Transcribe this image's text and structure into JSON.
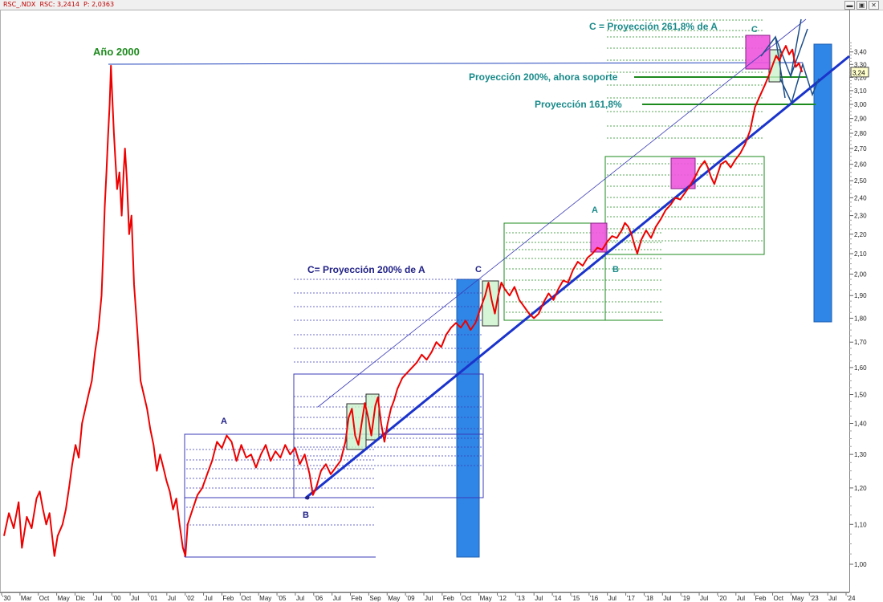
{
  "window": {
    "title": "RSC_.NDX  RSC: 3,2414  P: 2,0363",
    "buttons": [
      "▬",
      "▣",
      "✕"
    ]
  },
  "chart_data": {
    "type": "line",
    "title": "",
    "xlabel": "",
    "ylabel": "",
    "ylim": [
      0.98,
      3.52
    ],
    "y_scale": "log",
    "grid": false,
    "legend": "none",
    "last_value_label": "3,24",
    "colors": {
      "price": "#ee0000",
      "trend": "#1a33cc",
      "band": "#2f86e6",
      "fib_green": "#1d8a1d",
      "fib_blue": "#3b3bb8",
      "magenta": "#ee55dd",
      "teal": "#1a8a8a"
    },
    "y_ticks": [
      "1,00",
      "1,10",
      "1,20",
      "1,30",
      "1,40",
      "1,50",
      "1,60",
      "1,70",
      "1,80",
      "1,90",
      "2,00",
      "2,10",
      "2,20",
      "2,30",
      "2,40",
      "2,50",
      "2,60",
      "2,70",
      "2,80",
      "2,90",
      "3,00",
      "3,10",
      "3,20",
      "3,30",
      "3,40"
    ],
    "x_tick_labels": [
      "'30",
      "Mar",
      "Oct",
      "May",
      "Dic",
      "Jul",
      "'00",
      "Jul",
      "'01",
      "Jul",
      "'02",
      "Jul",
      "Feb",
      "Oct",
      "May",
      "'05",
      "Jul",
      "'06",
      "Jul",
      "Feb",
      "Sep",
      "May",
      "'09",
      "Jul",
      "Feb",
      "Oct",
      "May",
      "'12",
      "'13",
      "Jul",
      "'14",
      "'15",
      "'16",
      "Jul",
      "'17",
      "'18",
      "Jul",
      "'19",
      "Jul",
      "'20",
      "Jul",
      "Feb",
      "Oct",
      "May",
      "'23",
      "Jul",
      "'24"
    ],
    "series": [
      {
        "values": [
          [
            1997.0,
            1.07
          ],
          [
            1997.15,
            1.13
          ],
          [
            1997.3,
            1.09
          ],
          [
            1997.45,
            1.16
          ],
          [
            1997.55,
            1.04
          ],
          [
            1997.7,
            1.12
          ],
          [
            1997.85,
            1.09
          ],
          [
            1998.0,
            1.17
          ],
          [
            1998.1,
            1.19
          ],
          [
            1998.2,
            1.14
          ],
          [
            1998.3,
            1.1
          ],
          [
            1998.4,
            1.13
          ],
          [
            1998.55,
            1.02
          ],
          [
            1998.65,
            1.07
          ],
          [
            1998.8,
            1.1
          ],
          [
            1998.9,
            1.14
          ],
          [
            1999.0,
            1.2
          ],
          [
            1999.1,
            1.27
          ],
          [
            1999.2,
            1.33
          ],
          [
            1999.3,
            1.29
          ],
          [
            1999.4,
            1.4
          ],
          [
            1999.5,
            1.45
          ],
          [
            1999.6,
            1.5
          ],
          [
            1999.7,
            1.55
          ],
          [
            1999.8,
            1.66
          ],
          [
            1999.9,
            1.75
          ],
          [
            2000.0,
            1.9
          ],
          [
            2000.05,
            2.1
          ],
          [
            2000.1,
            2.35
          ],
          [
            2000.15,
            2.55
          ],
          [
            2000.2,
            2.78
          ],
          [
            2000.25,
            3.0
          ],
          [
            2000.29,
            3.29
          ],
          [
            2000.33,
            3.05
          ],
          [
            2000.38,
            2.8
          ],
          [
            2000.42,
            2.65
          ],
          [
            2000.48,
            2.45
          ],
          [
            2000.55,
            2.55
          ],
          [
            2000.62,
            2.3
          ],
          [
            2000.68,
            2.55
          ],
          [
            2000.72,
            2.7
          ],
          [
            2000.78,
            2.5
          ],
          [
            2000.85,
            2.2
          ],
          [
            2000.92,
            2.3
          ],
          [
            2001.0,
            1.95
          ],
          [
            2001.1,
            1.75
          ],
          [
            2001.2,
            1.55
          ],
          [
            2001.3,
            1.5
          ],
          [
            2001.4,
            1.45
          ],
          [
            2001.5,
            1.38
          ],
          [
            2001.6,
            1.33
          ],
          [
            2001.7,
            1.25
          ],
          [
            2001.8,
            1.3
          ],
          [
            2001.9,
            1.26
          ],
          [
            2002.0,
            1.22
          ],
          [
            2002.1,
            1.19
          ],
          [
            2002.2,
            1.14
          ],
          [
            2002.3,
            1.17
          ],
          [
            2002.4,
            1.1
          ],
          [
            2002.5,
            1.04
          ],
          [
            2002.58,
            1.02
          ],
          [
            2002.65,
            1.1
          ],
          [
            2002.8,
            1.14
          ],
          [
            2002.95,
            1.18
          ],
          [
            2003.1,
            1.2
          ],
          [
            2003.25,
            1.24
          ],
          [
            2003.4,
            1.28
          ],
          [
            2003.55,
            1.34
          ],
          [
            2003.7,
            1.32
          ],
          [
            2003.85,
            1.36
          ],
          [
            2004.0,
            1.34
          ],
          [
            2004.15,
            1.28
          ],
          [
            2004.3,
            1.33
          ],
          [
            2004.45,
            1.29
          ],
          [
            2004.6,
            1.3
          ],
          [
            2004.75,
            1.26
          ],
          [
            2004.9,
            1.3
          ],
          [
            2005.05,
            1.33
          ],
          [
            2005.2,
            1.28
          ],
          [
            2005.35,
            1.31
          ],
          [
            2005.5,
            1.29
          ],
          [
            2005.65,
            1.33
          ],
          [
            2005.8,
            1.3
          ],
          [
            2005.95,
            1.32
          ],
          [
            2006.1,
            1.27
          ],
          [
            2006.25,
            1.3
          ],
          [
            2006.4,
            1.24
          ],
          [
            2006.5,
            1.18
          ],
          [
            2006.6,
            1.2
          ],
          [
            2006.75,
            1.25
          ],
          [
            2006.9,
            1.27
          ],
          [
            2007.05,
            1.24
          ],
          [
            2007.2,
            1.26
          ],
          [
            2007.35,
            1.28
          ],
          [
            2007.5,
            1.34
          ],
          [
            2007.6,
            1.42
          ],
          [
            2007.7,
            1.45
          ],
          [
            2007.8,
            1.36
          ],
          [
            2007.9,
            1.33
          ],
          [
            2008.0,
            1.4
          ],
          [
            2008.1,
            1.47
          ],
          [
            2008.2,
            1.42
          ],
          [
            2008.3,
            1.36
          ],
          [
            2008.42,
            1.46
          ],
          [
            2008.5,
            1.49
          ],
          [
            2008.6,
            1.4
          ],
          [
            2008.7,
            1.34
          ],
          [
            2008.8,
            1.4
          ],
          [
            2008.9,
            1.45
          ],
          [
            2009.0,
            1.48
          ],
          [
            2009.1,
            1.52
          ],
          [
            2009.25,
            1.56
          ],
          [
            2009.4,
            1.58
          ],
          [
            2009.55,
            1.6
          ],
          [
            2009.7,
            1.62
          ],
          [
            2009.85,
            1.65
          ],
          [
            2010.0,
            1.63
          ],
          [
            2010.15,
            1.66
          ],
          [
            2010.3,
            1.7
          ],
          [
            2010.45,
            1.68
          ],
          [
            2010.6,
            1.73
          ],
          [
            2010.75,
            1.76
          ],
          [
            2010.9,
            1.78
          ],
          [
            2011.05,
            1.76
          ],
          [
            2011.2,
            1.79
          ],
          [
            2011.35,
            1.75
          ],
          [
            2011.5,
            1.78
          ],
          [
            2011.65,
            1.84
          ],
          [
            2011.8,
            1.9
          ],
          [
            2011.9,
            1.96
          ],
          [
            2012.0,
            1.88
          ],
          [
            2012.1,
            1.82
          ],
          [
            2012.2,
            1.9
          ],
          [
            2012.3,
            1.96
          ],
          [
            2012.4,
            1.93
          ],
          [
            2012.55,
            1.9
          ],
          [
            2012.7,
            1.94
          ],
          [
            2012.85,
            1.88
          ],
          [
            2013.0,
            1.85
          ],
          [
            2013.15,
            1.82
          ],
          [
            2013.3,
            1.8
          ],
          [
            2013.45,
            1.82
          ],
          [
            2013.6,
            1.87
          ],
          [
            2013.75,
            1.91
          ],
          [
            2013.9,
            1.88
          ],
          [
            2014.05,
            1.93
          ],
          [
            2014.2,
            1.97
          ],
          [
            2014.35,
            1.96
          ],
          [
            2014.5,
            2.02
          ],
          [
            2014.65,
            2.06
          ],
          [
            2014.8,
            2.04
          ],
          [
            2014.95,
            2.08
          ],
          [
            2015.1,
            2.1
          ],
          [
            2015.25,
            2.13
          ],
          [
            2015.4,
            2.12
          ],
          [
            2015.55,
            2.16
          ],
          [
            2015.7,
            2.19
          ],
          [
            2015.85,
            2.18
          ],
          [
            2016.0,
            2.22
          ],
          [
            2016.1,
            2.26
          ],
          [
            2016.2,
            2.24
          ],
          [
            2016.3,
            2.2
          ],
          [
            2016.4,
            2.14
          ],
          [
            2016.48,
            2.1
          ],
          [
            2016.6,
            2.17
          ],
          [
            2016.75,
            2.22
          ],
          [
            2016.9,
            2.18
          ],
          [
            2017.05,
            2.24
          ],
          [
            2017.2,
            2.28
          ],
          [
            2017.35,
            2.33
          ],
          [
            2017.5,
            2.36
          ],
          [
            2017.65,
            2.4
          ],
          [
            2017.8,
            2.39
          ],
          [
            2017.95,
            2.43
          ],
          [
            2018.1,
            2.47
          ],
          [
            2018.25,
            2.52
          ],
          [
            2018.4,
            2.58
          ],
          [
            2018.55,
            2.62
          ],
          [
            2018.65,
            2.58
          ],
          [
            2018.75,
            2.52
          ],
          [
            2018.85,
            2.48
          ],
          [
            2018.95,
            2.54
          ],
          [
            2019.05,
            2.6
          ],
          [
            2019.2,
            2.62
          ],
          [
            2019.35,
            2.58
          ],
          [
            2019.5,
            2.63
          ],
          [
            2019.65,
            2.67
          ],
          [
            2019.8,
            2.73
          ],
          [
            2019.95,
            2.82
          ],
          [
            2020.1,
            2.98
          ],
          [
            2020.25,
            3.06
          ],
          [
            2020.4,
            3.14
          ],
          [
            2020.55,
            3.23
          ],
          [
            2020.65,
            3.3
          ],
          [
            2020.75,
            3.37
          ],
          [
            2020.85,
            3.33
          ],
          [
            2020.95,
            3.4
          ],
          [
            2021.05,
            3.45
          ],
          [
            2021.15,
            3.38
          ],
          [
            2021.25,
            3.42
          ],
          [
            2021.35,
            3.28
          ],
          [
            2021.45,
            3.31
          ],
          [
            2021.55,
            3.24
          ]
        ]
      }
    ],
    "annotations": [
      {
        "text": "Año 2000",
        "color": "#1d8a1d"
      },
      {
        "text": "C = Proyección 261,8% de A",
        "color": "#1a8a8a"
      },
      {
        "text": "C",
        "color": "#1a8a8a"
      },
      {
        "text": "Proyección 200%, ahora soporte",
        "color": "#1a8a8a"
      },
      {
        "text": "Proyección 161,8%",
        "color": "#1a8a8a"
      },
      {
        "text": "A",
        "color": "#1a8a8a"
      },
      {
        "text": "B",
        "color": "#1a8a8a"
      },
      {
        "text": "C= Proyección 200% de A",
        "color": "#222288"
      },
      {
        "text": "C",
        "color": "#222288"
      },
      {
        "text": "A",
        "color": "#222288"
      },
      {
        "text": "B",
        "color": "#222288"
      }
    ]
  }
}
